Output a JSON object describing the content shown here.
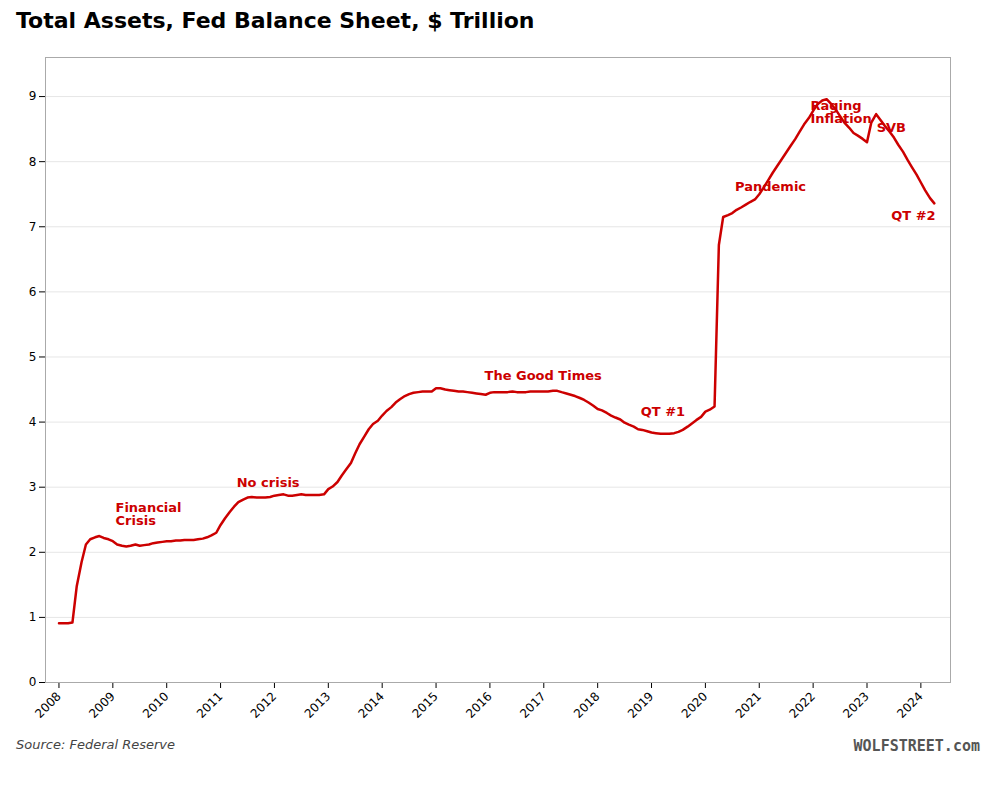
{
  "chart_data": {
    "type": "line",
    "title": "Total Assets, Fed Balance Sheet, $ Trillion",
    "caption": "Source: Federal Reserve",
    "watermark": "WOLFSTREET.com",
    "color": "#cc0000",
    "grid": true,
    "x": [
      2008.0,
      2008.08,
      2008.17,
      2008.25,
      2008.33,
      2008.42,
      2008.5,
      2008.58,
      2008.67,
      2008.75,
      2008.83,
      2008.92,
      2009.0,
      2009.08,
      2009.17,
      2009.25,
      2009.33,
      2009.42,
      2009.5,
      2009.58,
      2009.67,
      2009.75,
      2009.83,
      2009.92,
      2010.0,
      2010.08,
      2010.17,
      2010.25,
      2010.33,
      2010.42,
      2010.5,
      2010.58,
      2010.67,
      2010.75,
      2010.83,
      2010.92,
      2011.0,
      2011.08,
      2011.17,
      2011.25,
      2011.33,
      2011.42,
      2011.5,
      2011.58,
      2011.67,
      2011.75,
      2011.83,
      2011.92,
      2012.0,
      2012.08,
      2012.17,
      2012.25,
      2012.33,
      2012.42,
      2012.5,
      2012.58,
      2012.67,
      2012.75,
      2012.83,
      2012.92,
      2013.0,
      2013.08,
      2013.17,
      2013.25,
      2013.33,
      2013.42,
      2013.5,
      2013.58,
      2013.67,
      2013.75,
      2013.83,
      2013.92,
      2014.0,
      2014.08,
      2014.17,
      2014.25,
      2014.33,
      2014.42,
      2014.5,
      2014.58,
      2014.67,
      2014.75,
      2014.83,
      2014.92,
      2015.0,
      2015.08,
      2015.17,
      2015.25,
      2015.33,
      2015.42,
      2015.5,
      2015.58,
      2015.67,
      2015.75,
      2015.83,
      2015.92,
      2016.0,
      2016.08,
      2016.17,
      2016.25,
      2016.33,
      2016.42,
      2016.5,
      2016.58,
      2016.67,
      2016.75,
      2016.83,
      2016.92,
      2017.0,
      2017.08,
      2017.17,
      2017.25,
      2017.33,
      2017.42,
      2017.5,
      2017.58,
      2017.67,
      2017.75,
      2017.83,
      2017.92,
      2018.0,
      2018.08,
      2018.17,
      2018.25,
      2018.33,
      2018.42,
      2018.5,
      2018.58,
      2018.67,
      2018.75,
      2018.83,
      2018.92,
      2019.0,
      2019.08,
      2019.17,
      2019.25,
      2019.33,
      2019.42,
      2019.5,
      2019.58,
      2019.67,
      2019.75,
      2019.83,
      2019.92,
      2020.0,
      2020.08,
      2020.17,
      2020.25,
      2020.33,
      2020.42,
      2020.5,
      2020.58,
      2020.67,
      2020.75,
      2020.83,
      2020.92,
      2021.0,
      2021.08,
      2021.17,
      2021.25,
      2021.33,
      2021.42,
      2021.5,
      2021.58,
      2021.67,
      2021.75,
      2021.83,
      2021.92,
      2022.0,
      2022.08,
      2022.17,
      2022.25,
      2022.33,
      2022.42,
      2022.5,
      2022.58,
      2022.67,
      2022.75,
      2022.83,
      2022.92,
      2023.0,
      2023.08,
      2023.17,
      2023.25,
      2023.33,
      2023.42,
      2023.5,
      2023.58,
      2023.67,
      2023.75,
      2023.83,
      2023.92,
      2024.0,
      2024.08,
      2024.17,
      2024.25
    ],
    "values": [
      0.91,
      0.91,
      0.91,
      0.92,
      1.48,
      1.85,
      2.12,
      2.2,
      2.23,
      2.25,
      2.22,
      2.2,
      2.17,
      2.12,
      2.1,
      2.09,
      2.1,
      2.12,
      2.1,
      2.11,
      2.12,
      2.14,
      2.15,
      2.16,
      2.17,
      2.17,
      2.18,
      2.18,
      2.19,
      2.19,
      2.19,
      2.2,
      2.21,
      2.23,
      2.26,
      2.3,
      2.42,
      2.52,
      2.62,
      2.7,
      2.77,
      2.81,
      2.84,
      2.85,
      2.84,
      2.84,
      2.84,
      2.85,
      2.87,
      2.88,
      2.89,
      2.87,
      2.87,
      2.88,
      2.89,
      2.88,
      2.88,
      2.88,
      2.88,
      2.89,
      2.97,
      3.01,
      3.08,
      3.18,
      3.27,
      3.37,
      3.52,
      3.66,
      3.78,
      3.89,
      3.97,
      4.02,
      4.1,
      4.17,
      4.23,
      4.3,
      4.35,
      4.4,
      4.43,
      4.45,
      4.46,
      4.47,
      4.47,
      4.47,
      4.52,
      4.52,
      4.5,
      4.49,
      4.48,
      4.47,
      4.47,
      4.46,
      4.45,
      4.44,
      4.43,
      4.42,
      4.45,
      4.46,
      4.46,
      4.46,
      4.46,
      4.47,
      4.46,
      4.46,
      4.46,
      4.47,
      4.47,
      4.47,
      4.47,
      4.47,
      4.48,
      4.48,
      4.46,
      4.44,
      4.42,
      4.4,
      4.37,
      4.34,
      4.3,
      4.25,
      4.2,
      4.18,
      4.14,
      4.1,
      4.07,
      4.04,
      3.99,
      3.96,
      3.93,
      3.89,
      3.88,
      3.86,
      3.84,
      3.83,
      3.82,
      3.82,
      3.82,
      3.83,
      3.85,
      3.88,
      3.93,
      3.98,
      4.03,
      4.08,
      4.16,
      4.19,
      4.24,
      6.72,
      7.15,
      7.18,
      7.21,
      7.26,
      7.3,
      7.34,
      7.38,
      7.42,
      7.5,
      7.6,
      7.72,
      7.83,
      7.93,
      8.04,
      8.14,
      8.24,
      8.35,
      8.46,
      8.57,
      8.67,
      8.78,
      8.88,
      8.94,
      8.96,
      8.89,
      8.8,
      8.7,
      8.6,
      8.52,
      8.44,
      8.4,
      8.35,
      8.3,
      8.6,
      8.73,
      8.64,
      8.55,
      8.46,
      8.37,
      8.26,
      8.15,
      8.03,
      7.92,
      7.8,
      7.68,
      7.56,
      7.44,
      7.36
    ],
    "xlim": [
      2007.75,
      2024.55
    ],
    "xticks": [
      2008,
      2009,
      2010,
      2011,
      2012,
      2013,
      2014,
      2015,
      2016,
      2017,
      2018,
      2019,
      2020,
      2021,
      2022,
      2023,
      2024
    ],
    "ylim": [
      0,
      9.6
    ],
    "yticks": [
      0,
      1,
      2,
      3,
      4,
      5,
      6,
      7,
      8,
      9
    ],
    "annotations": [
      {
        "text": "Financial\nCrisis",
        "x": 2009.05,
        "y": 2.42,
        "color": "#cc0000"
      },
      {
        "text": "No crisis",
        "x": 2011.3,
        "y": 3.0,
        "color": "#cc0000"
      },
      {
        "text": "The Good Times",
        "x": 2015.9,
        "y": 4.65,
        "color": "#cc0000"
      },
      {
        "text": "QT #1",
        "x": 2018.8,
        "y": 4.1,
        "color": "#cc0000"
      },
      {
        "text": "Pandemic",
        "x": 2020.55,
        "y": 7.55,
        "color": "#cc0000"
      },
      {
        "text": "Raging\nInflation",
        "x": 2021.95,
        "y": 8.6,
        "color": "#cc0000"
      },
      {
        "text": "SVB",
        "x": 2023.18,
        "y": 8.45,
        "color": "#cc0000"
      },
      {
        "text": "QT #2",
        "x": 2023.45,
        "y": 7.1,
        "color": "#cc0000"
      }
    ]
  }
}
